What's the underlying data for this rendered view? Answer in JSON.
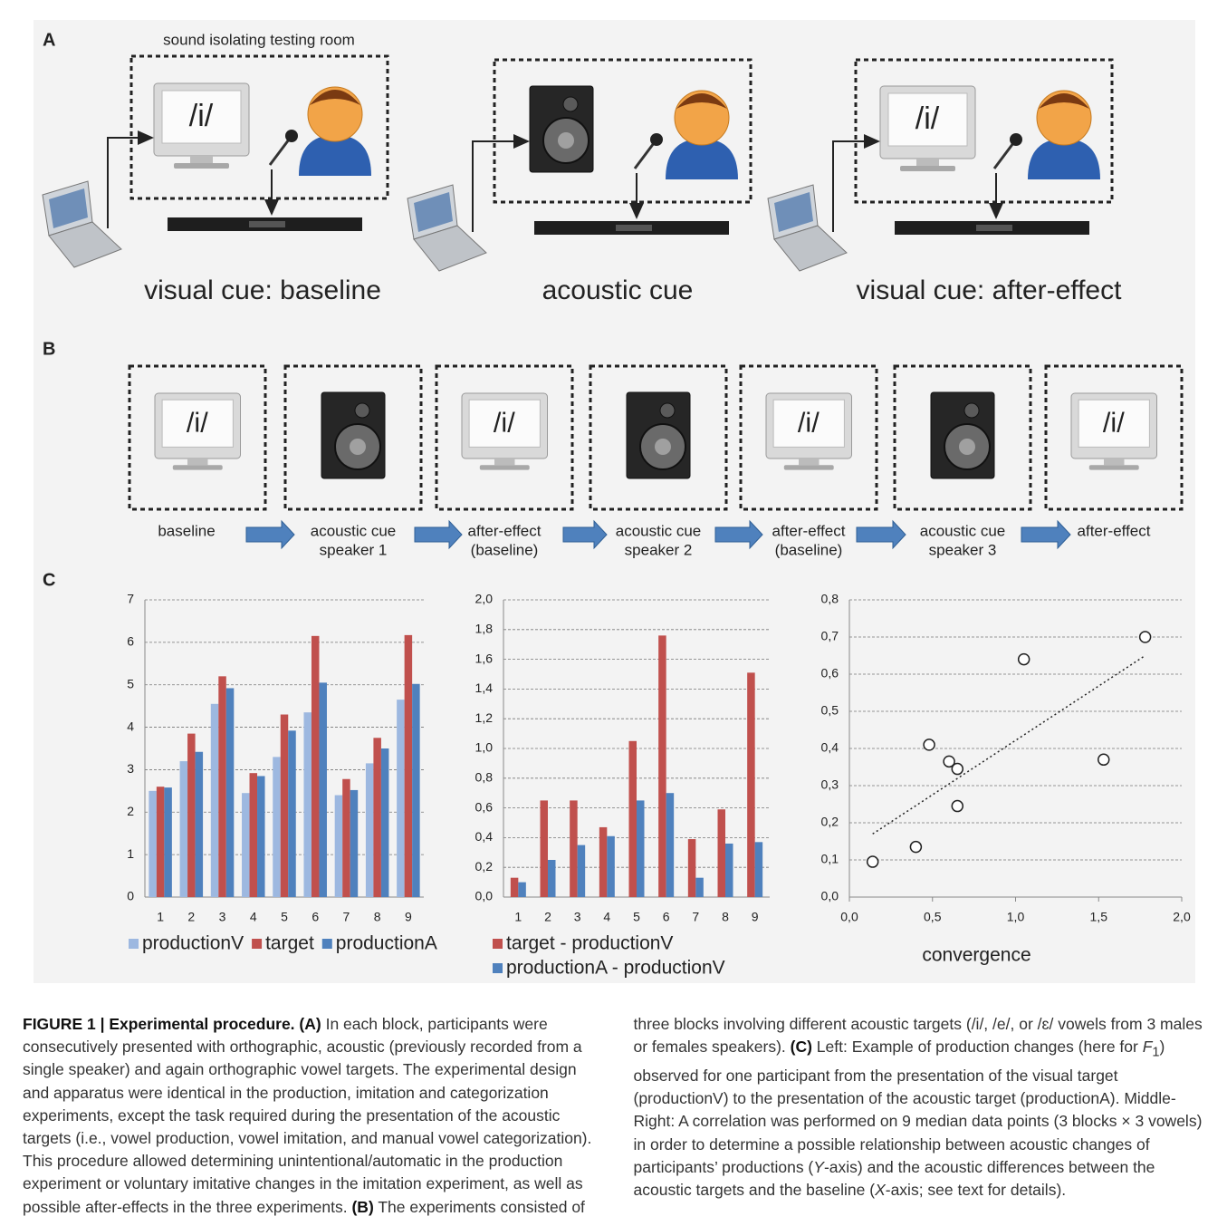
{
  "panelA": {
    "letter": "A",
    "room_label": "sound isolating testing room",
    "screen_text": "/i/",
    "captions": [
      "visual cue: baseline",
      "acoustic cue",
      "visual cue: after-effect"
    ]
  },
  "panelB": {
    "letter": "B",
    "screen_text": "/i/",
    "labels": [
      [
        "baseline"
      ],
      [
        "acoustic cue",
        "speaker 1"
      ],
      [
        "after-effect",
        "(baseline)"
      ],
      [
        "acoustic cue",
        "speaker 2"
      ],
      [
        "after-effect",
        "(baseline)"
      ],
      [
        "acoustic cue",
        "speaker 3"
      ],
      [
        "after-effect"
      ]
    ]
  },
  "panelC": {
    "letter": "C"
  },
  "chart_data": [
    {
      "type": "bar",
      "categories": [
        "1",
        "2",
        "3",
        "4",
        "5",
        "6",
        "7",
        "8",
        "9"
      ],
      "series": [
        {
          "name": "productionV",
          "color": "#9db8e0",
          "values": [
            2.5,
            3.2,
            4.55,
            2.45,
            3.3,
            4.35,
            2.4,
            3.15,
            4.65
          ]
        },
        {
          "name": "target",
          "color": "#c0504d",
          "values": [
            2.6,
            3.85,
            5.2,
            2.92,
            4.3,
            6.15,
            2.78,
            3.75,
            6.17
          ]
        },
        {
          "name": "productionA",
          "color": "#4f81bd",
          "values": [
            2.58,
            3.42,
            4.92,
            2.85,
            3.92,
            5.05,
            2.52,
            3.5,
            5.02
          ]
        }
      ],
      "ylim": [
        0,
        7
      ],
      "yticks": [
        0,
        1,
        2,
        3,
        4,
        5,
        6,
        7
      ],
      "grid": true
    },
    {
      "type": "bar",
      "categories": [
        "1",
        "2",
        "3",
        "4",
        "5",
        "6",
        "7",
        "8",
        "9"
      ],
      "series": [
        {
          "name": "target - productionV",
          "color": "#c0504d",
          "values": [
            0.13,
            0.65,
            0.65,
            0.47,
            1.05,
            1.76,
            0.39,
            0.59,
            1.51
          ]
        },
        {
          "name": "productionA - productionV",
          "color": "#4f81bd",
          "values": [
            0.1,
            0.25,
            0.35,
            0.41,
            0.65,
            0.7,
            0.13,
            0.36,
            0.37
          ]
        }
      ],
      "ylim": [
        0,
        2
      ],
      "yticks": [
        {
          "value": 0,
          "label": "0,0"
        },
        {
          "value": 0.2,
          "label": "0,2"
        },
        {
          "value": 0.4,
          "label": "0,4"
        },
        {
          "value": 0.6,
          "label": "0,6"
        },
        {
          "value": 0.8,
          "label": "0,8"
        },
        {
          "value": 1,
          "label": "1,0"
        },
        {
          "value": 1.2,
          "label": "1,2"
        },
        {
          "value": 1.4,
          "label": "1,4"
        },
        {
          "value": 1.6,
          "label": "1,6"
        },
        {
          "value": 1.8,
          "label": "1,8"
        },
        {
          "value": 2,
          "label": "2,0"
        }
      ],
      "grid": true
    },
    {
      "type": "scatter",
      "x_label": "convergence",
      "x": [
        0.14,
        0.4,
        0.48,
        0.6,
        0.65,
        0.65,
        1.05,
        1.53,
        1.78
      ],
      "y": [
        0.095,
        0.135,
        0.41,
        0.365,
        0.345,
        0.245,
        0.64,
        0.37,
        0.7
      ],
      "trendline": {
        "x": [
          0.14,
          1.78
        ],
        "y": [
          0.17,
          0.65
        ]
      },
      "xlim": [
        0,
        2
      ],
      "xticks": [
        {
          "value": 0,
          "label": "0,0"
        },
        {
          "value": 0.5,
          "label": "0,5"
        },
        {
          "value": 1,
          "label": "1,0"
        },
        {
          "value": 1.5,
          "label": "1,5"
        },
        {
          "value": 2,
          "label": "2,0"
        }
      ],
      "ylim": [
        0,
        0.8
      ],
      "yticks": [
        {
          "value": 0,
          "label": "0,0"
        },
        {
          "value": 0.1,
          "label": "0,1"
        },
        {
          "value": 0.2,
          "label": "0,2"
        },
        {
          "value": 0.3,
          "label": "0,3"
        },
        {
          "value": 0.4,
          "label": "0,4"
        },
        {
          "value": 0.5,
          "label": "0,5"
        },
        {
          "value": 0.6,
          "label": "0,6"
        },
        {
          "value": 0.7,
          "label": "0,7"
        },
        {
          "value": 0.8,
          "label": "0,8"
        }
      ],
      "grid": true
    }
  ],
  "caption": {
    "runs": [
      {
        "text": "FIGURE 1 | Experimental procedure.",
        "style": "b"
      },
      {
        "text": " "
      },
      {
        "text": "(A)",
        "style": "b"
      },
      {
        "text": " In each block, participants were consecutively presented with orthographic, acoustic (previously recorded from a single speaker) and again orthographic vowel targets. The experimental design and apparatus were identical in the production, imitation and categorization experiments, except the task required during the presentation of the acoustic targets (i.e., vowel production, vowel imitation, and manual vowel categorization). This procedure allowed determining unintentional/automatic in the production experiment or voluntary imitative changes in the imitation experiment, as well as possible after-effects in the three experiments. "
      },
      {
        "text": "(B)",
        "style": "b"
      },
      {
        "text": " The experiments consisted of three blocks involving different acoustic targets (/i/, /e/, or /ɛ/ vowels from 3 males or females speakers). "
      },
      {
        "text": "(C)",
        "style": "b"
      },
      {
        "text": " Left: Example of production changes (here for "
      },
      {
        "text": "F",
        "style": "i"
      },
      {
        "text": "1",
        "style": "sub"
      },
      {
        "text": ") observed for one participant from the presentation of the visual target (productionV) to the presentation of the acoustic target (productionA). Middle-Right: A correlation was performed on 9 median data points (3 blocks × 3 vowels) in order to determine a possible relationship between acoustic changes of participants’ productions ("
      },
      {
        "text": "Y",
        "style": "i"
      },
      {
        "text": "-axis) and the acoustic differences between the acoustic targets and the baseline ("
      },
      {
        "text": "X",
        "style": "i"
      },
      {
        "text": "-axis; see text for details)."
      }
    ]
  }
}
